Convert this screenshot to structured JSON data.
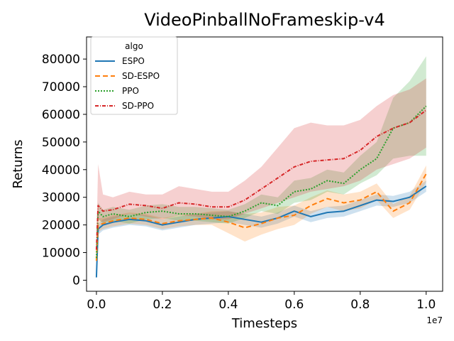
{
  "chart_data": {
    "type": "line",
    "title": "VideoPinballNoFrameskip-v4",
    "xlabel": "Timesteps",
    "ylabel": "Returns",
    "x_offset_label": "1e7",
    "xlim": [
      -0.03,
      1.05
    ],
    "ylim": [
      -4000,
      88000
    ],
    "x_ticks": [
      0.0,
      0.2,
      0.4,
      0.6,
      0.8,
      1.0
    ],
    "x_tick_labels": [
      "0.0",
      "0.2",
      "0.4",
      "0.6",
      "0.8",
      "1.0"
    ],
    "y_ticks": [
      0,
      10000,
      20000,
      30000,
      40000,
      50000,
      60000,
      70000,
      80000
    ],
    "y_tick_labels": [
      "0",
      "10000",
      "20000",
      "30000",
      "40000",
      "50000",
      "60000",
      "70000",
      "80000"
    ],
    "grid": false,
    "legend": {
      "title": "algo",
      "placement": "top-left"
    },
    "x": [
      0.0,
      0.005,
      0.02,
      0.05,
      0.1,
      0.15,
      0.2,
      0.25,
      0.3,
      0.35,
      0.4,
      0.45,
      0.5,
      0.55,
      0.6,
      0.65,
      0.7,
      0.75,
      0.8,
      0.85,
      0.9,
      0.95,
      1.0
    ],
    "series": [
      {
        "name": "ESPO",
        "color": "#1f77b4",
        "dash": "",
        "values": [
          1000,
          18500,
          20000,
          21000,
          22000,
          21500,
          20000,
          21000,
          22000,
          22500,
          23000,
          22000,
          21000,
          22500,
          25000,
          23000,
          24500,
          25000,
          27000,
          29000,
          28500,
          30000,
          34000
        ],
        "lower": [
          0,
          16500,
          18000,
          19000,
          20000,
          19500,
          18000,
          19000,
          20000,
          20500,
          21000,
          20000,
          19000,
          20500,
          23000,
          21000,
          22500,
          23000,
          25000,
          27000,
          26500,
          28000,
          32000
        ],
        "upper": [
          2000,
          20500,
          22000,
          23000,
          24000,
          23500,
          22000,
          23000,
          24000,
          24500,
          25000,
          24000,
          23000,
          24500,
          27000,
          25000,
          26500,
          27000,
          29000,
          31000,
          30500,
          32000,
          36000
        ]
      },
      {
        "name": "SD-ESPO",
        "color": "#ff7f0e",
        "dash": "7,4",
        "values": [
          7000,
          20000,
          20500,
          21500,
          22500,
          22000,
          20500,
          21500,
          22000,
          22500,
          21000,
          19000,
          20500,
          22500,
          23500,
          27000,
          29500,
          28000,
          29000,
          32000,
          25000,
          28000,
          38500
        ],
        "lower": [
          5000,
          17500,
          18500,
          19500,
          20500,
          20000,
          18500,
          19500,
          20000,
          20000,
          17000,
          14000,
          16500,
          18500,
          20000,
          24000,
          26500,
          25000,
          26000,
          29000,
          22500,
          25500,
          35500
        ],
        "upper": [
          9000,
          22500,
          22500,
          23500,
          24500,
          24000,
          22500,
          23500,
          24000,
          25000,
          25000,
          24000,
          24500,
          26500,
          27000,
          30000,
          32500,
          31000,
          32000,
          35000,
          27500,
          30500,
          41500
        ]
      },
      {
        "name": "PPO",
        "color": "#2ca02c",
        "dash": "2,2",
        "values": [
          8000,
          25000,
          23000,
          24000,
          23000,
          24500,
          25000,
          24000,
          24000,
          23500,
          23000,
          25000,
          28000,
          27000,
          32000,
          33000,
          36000,
          35000,
          40000,
          44000,
          55000,
          57000,
          63000
        ],
        "lower": [
          6000,
          22000,
          20500,
          21500,
          20500,
          22000,
          22500,
          21500,
          21500,
          21000,
          20500,
          22500,
          25000,
          24000,
          28000,
          29000,
          32000,
          31000,
          35000,
          38000,
          44000,
          45000,
          45000
        ],
        "upper": [
          10000,
          28000,
          25500,
          26500,
          25500,
          27000,
          27500,
          26500,
          26500,
          26000,
          25500,
          27500,
          31000,
          30000,
          36000,
          37000,
          40000,
          39000,
          45000,
          50000,
          66000,
          72000,
          81000
        ]
      },
      {
        "name": "SD-PPO",
        "color": "#d62728",
        "dash": "5,2,1,2",
        "values": [
          11000,
          27000,
          25000,
          25500,
          27500,
          27000,
          26000,
          28000,
          27500,
          26500,
          26500,
          29000,
          33000,
          37000,
          41000,
          43000,
          43500,
          44000,
          47000,
          52000,
          55000,
          57000,
          61500
        ],
        "lower": [
          8000,
          22000,
          21000,
          22000,
          24000,
          23000,
          22000,
          23500,
          23000,
          22000,
          22000,
          24000,
          26000,
          28000,
          30000,
          32000,
          33000,
          34000,
          36000,
          40000,
          42000,
          44000,
          48000
        ],
        "upper": [
          14000,
          42000,
          31000,
          30000,
          32000,
          31000,
          31000,
          34000,
          33000,
          32000,
          32000,
          36000,
          41000,
          48000,
          55000,
          57000,
          56000,
          56000,
          58000,
          63000,
          67000,
          69000,
          73000
        ]
      }
    ]
  }
}
